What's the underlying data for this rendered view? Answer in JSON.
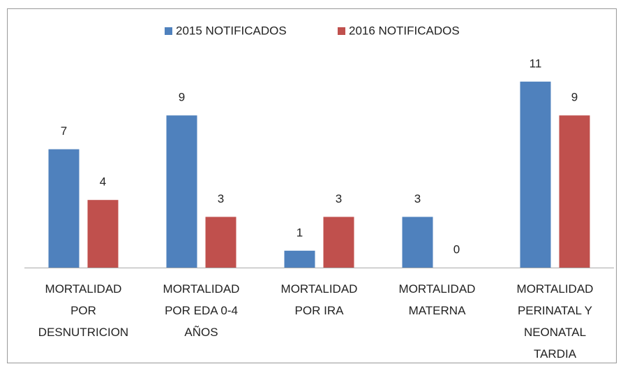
{
  "chart_data": {
    "type": "bar",
    "categories": [
      "MORTALIDAD\nPOR\nDESNUTRICION",
      "MORTALIDAD\nPOR EDA 0-4\nAÑOS",
      "MORTALIDAD\nPOR IRA",
      "MORTALIDAD\nMATERNA",
      "MORTALIDAD\nPERINATAL Y\nNEONATAL\nTARDIA"
    ],
    "series": [
      {
        "name": "2015 NOTIFICADOS",
        "color": "#4f81bd",
        "values": [
          7,
          9,
          1,
          3,
          11
        ]
      },
      {
        "name": "2016 NOTIFICADOS",
        "color": "#c0504d",
        "values": [
          4,
          3,
          3,
          0,
          9
        ]
      }
    ],
    "ylim": [
      0,
      12
    ],
    "legend": "top"
  }
}
